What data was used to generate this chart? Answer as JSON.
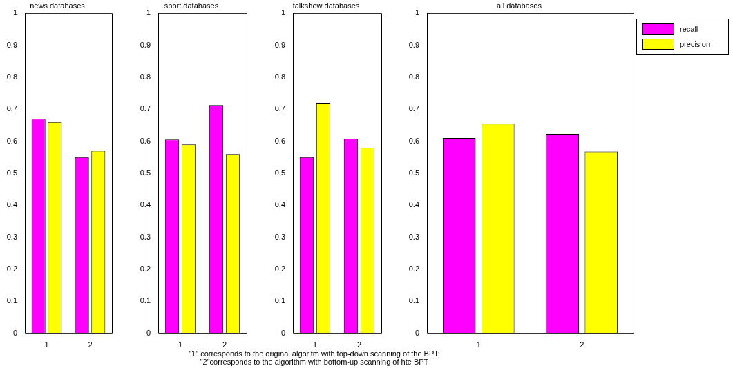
{
  "chart_data": [
    {
      "type": "bar",
      "title": "news databases",
      "categories": [
        "1",
        "2"
      ],
      "ylim": [
        0,
        1
      ],
      "yticks": [
        0,
        0.1,
        0.2,
        0.3,
        0.4,
        0.5,
        0.6,
        0.7,
        0.8,
        0.9,
        1
      ],
      "annotations": [
        "\"1\" corresponds to the original algoritm with top-down scanning of the BPT;",
        "\"2\"corresponds to the algorithm with bottom-up scanning of hte BPT"
      ],
      "series": [
        {
          "color": "#ff00ff",
          "values": [
            0.67,
            0.55
          ]
        },
        {
          "color": "#ffff00",
          "values": [
            0.66,
            0.57
          ]
        }
      ]
    },
    {
      "type": "bar",
      "title": "sport databases",
      "categories": [
        "1",
        "2"
      ],
      "ylim": [
        0,
        1
      ],
      "yticks": [
        0,
        0.1,
        0.2,
        0.3,
        0.4,
        0.5,
        0.6,
        0.7,
        0.8,
        0.9,
        1
      ],
      "series": [
        {
          "color": "#ff00ff",
          "values": [
            0.605,
            0.713
          ]
        },
        {
          "color": "#ffff00",
          "values": [
            0.59,
            0.56
          ]
        }
      ]
    },
    {
      "type": "bar",
      "title": "talkshow databases",
      "categories": [
        "1",
        "2"
      ],
      "ylim": [
        0,
        1
      ],
      "yticks": [
        0,
        0.1,
        0.2,
        0.3,
        0.4,
        0.5,
        0.6,
        0.7,
        0.8,
        0.9,
        1
      ],
      "series": [
        {
          "color": "#ff00ff",
          "values": [
            0.55,
            0.608
          ]
        },
        {
          "color": "#ffff00",
          "values": [
            0.72,
            0.58
          ]
        }
      ]
    },
    {
      "type": "bar",
      "title": "all databases",
      "categories": [
        "1",
        "2"
      ],
      "ylim": [
        0,
        1
      ],
      "yticks": [
        0,
        0.1,
        0.2,
        0.3,
        0.4,
        0.5,
        0.6,
        0.7,
        0.8,
        0.9,
        1
      ],
      "legend": "top right",
      "series": [
        {
          "name": "recall",
          "color": "#ff00ff",
          "values": [
            0.61,
            0.623
          ]
        },
        {
          "name": "precision",
          "color": "#ffff00",
          "values": [
            0.655,
            0.568
          ]
        }
      ]
    }
  ]
}
